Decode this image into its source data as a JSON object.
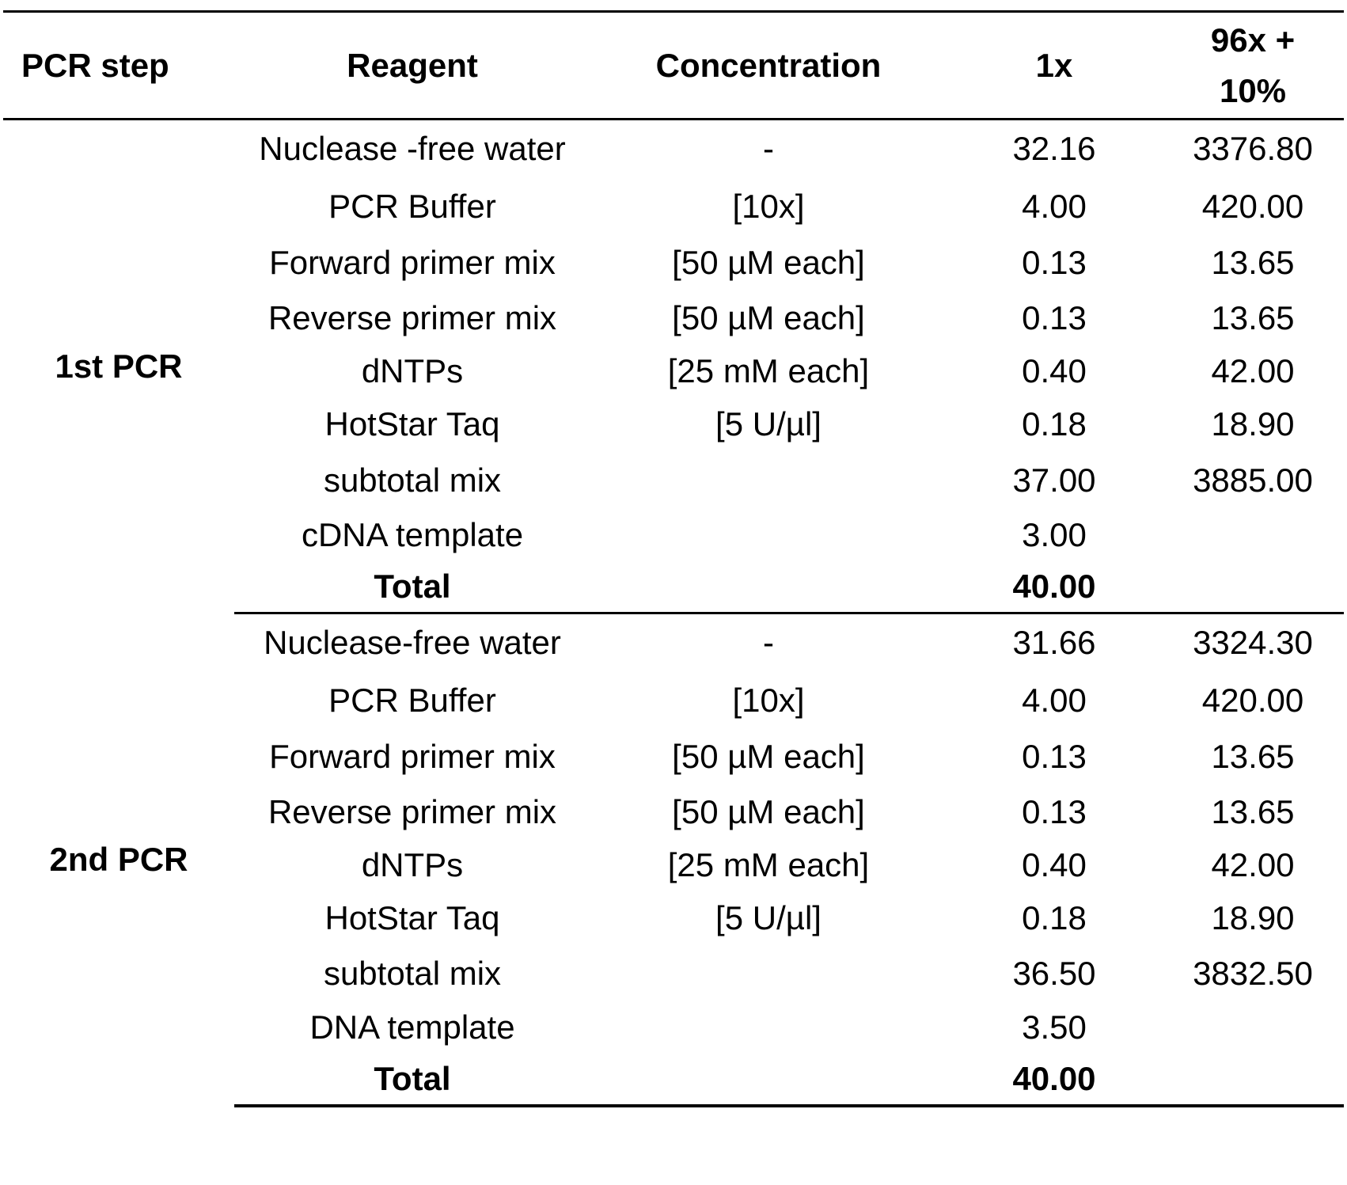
{
  "header": {
    "step": "PCR step",
    "reagent": "Reagent",
    "concentration": "Concentration",
    "onex": "1x",
    "scaled_line1": "96x +",
    "scaled_line2": "10%"
  },
  "sections": [
    {
      "step": "1st PCR",
      "rows": [
        {
          "reagent": "Nuclease -free water",
          "concentration": "-",
          "onex": "32.16",
          "scaled": "3376.80"
        },
        {
          "reagent": "PCR Buffer",
          "concentration": "[10x]",
          "onex": "4.00",
          "scaled": "420.00"
        },
        {
          "reagent": "Forward primer mix",
          "concentration": "[50 µM each]",
          "onex": "0.13",
          "scaled": "13.65"
        },
        {
          "reagent": "Reverse primer mix",
          "concentration": "[50 µM each]",
          "onex": "0.13",
          "scaled": "13.65"
        },
        {
          "reagent": "dNTPs",
          "concentration": "[25 mM each]",
          "onex": "0.40",
          "scaled": "42.00"
        },
        {
          "reagent": "HotStar Taq",
          "concentration": "[5 U/µl]",
          "onex": "0.18",
          "scaled": "18.90"
        },
        {
          "reagent": "subtotal mix",
          "concentration": "",
          "onex": "37.00",
          "scaled": "3885.00"
        },
        {
          "reagent": "cDNA template",
          "concentration": "",
          "onex": "3.00",
          "scaled": ""
        },
        {
          "reagent": "Total",
          "concentration": "",
          "onex": "40.00",
          "scaled": ""
        }
      ]
    },
    {
      "step": "2nd PCR",
      "rows": [
        {
          "reagent": "Nuclease-free water",
          "concentration": "-",
          "onex": "31.66",
          "scaled": "3324.30"
        },
        {
          "reagent": "PCR Buffer",
          "concentration": "[10x]",
          "onex": "4.00",
          "scaled": "420.00"
        },
        {
          "reagent": "Forward primer mix",
          "concentration": "[50 µM each]",
          "onex": "0.13",
          "scaled": "13.65"
        },
        {
          "reagent": "Reverse primer mix",
          "concentration": "[50 µM each]",
          "onex": "0.13",
          "scaled": "13.65"
        },
        {
          "reagent": "dNTPs",
          "concentration": "[25 mM each]",
          "onex": "0.40",
          "scaled": "42.00"
        },
        {
          "reagent": "HotStar Taq",
          "concentration": "[5 U/µl]",
          "onex": "0.18",
          "scaled": "18.90"
        },
        {
          "reagent": "subtotal mix",
          "concentration": "",
          "onex": "36.50",
          "scaled": "3832.50"
        },
        {
          "reagent": "DNA template",
          "concentration": "",
          "onex": "3.50",
          "scaled": ""
        },
        {
          "reagent": "Total",
          "concentration": "",
          "onex": "40.00",
          "scaled": ""
        }
      ]
    }
  ]
}
